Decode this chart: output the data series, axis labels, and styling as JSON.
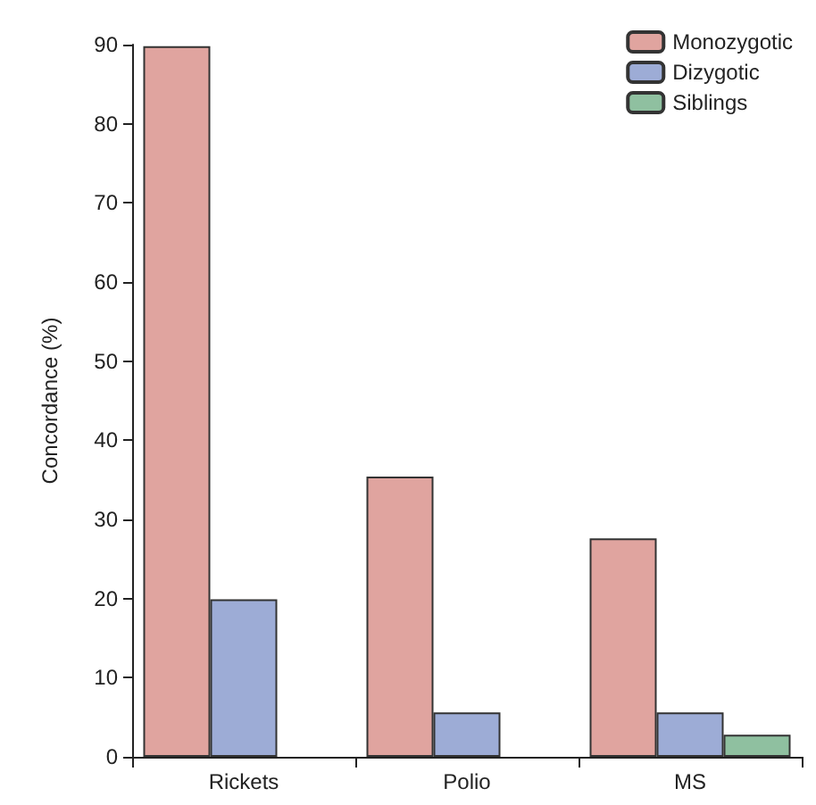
{
  "chart_data": {
    "type": "bar",
    "ylabel": "Concordance (%)",
    "categories": [
      "Rickets",
      "Polio",
      "MS"
    ],
    "series": [
      {
        "name": "Monozygotic",
        "color": "#e0a49f",
        "values": [
          89.8,
          35.4,
          27.6
        ]
      },
      {
        "name": "Dizygotic",
        "color": "#9dacd6",
        "values": [
          19.9,
          5.6,
          5.6
        ]
      },
      {
        "name": "Siblings",
        "color": "#8fc0a0",
        "values": [
          null,
          null,
          2.8
        ]
      }
    ],
    "ylim": [
      0,
      90
    ],
    "yticks": [
      0,
      10,
      20,
      30,
      40,
      50,
      60,
      70,
      80,
      90
    ],
    "grid": false,
    "legend": "top right"
  }
}
